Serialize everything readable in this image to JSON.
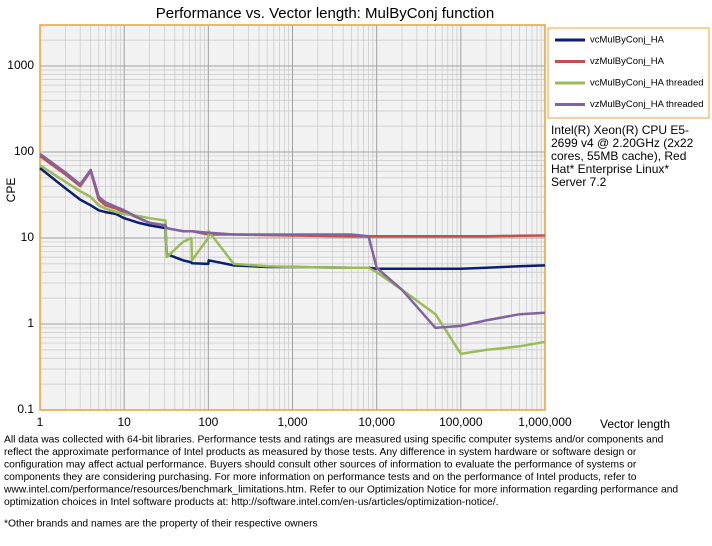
{
  "chart_data": {
    "type": "line",
    "title": "Performance vs. Vector length: MulByConj function",
    "x_label": "Vector length",
    "y_label": "CPE",
    "x": [
      1,
      2,
      3,
      4,
      5,
      6,
      8,
      10,
      15,
      20,
      31,
      32,
      50,
      63,
      64,
      100,
      101,
      200,
      500,
      1000,
      5000,
      8000,
      10000,
      20000,
      50000,
      100000,
      200000,
      500000,
      1000000
    ],
    "series": [
      {
        "name": "vcMulByConj_HA",
        "color": "#0b1f6e",
        "values": [
          65,
          38,
          28,
          24,
          21,
          20,
          19,
          17,
          15,
          14,
          13,
          6.5,
          5.5,
          5.2,
          5.1,
          5,
          5.5,
          4.8,
          4.6,
          4.6,
          4.5,
          4.5,
          4.4,
          4.4,
          4.4,
          4.4,
          4.5,
          4.7,
          4.8
        ]
      },
      {
        "name": "vzMulByConj_HA",
        "color": "#c0504d",
        "values": [
          90,
          55,
          40,
          60,
          28,
          24,
          22,
          20,
          17,
          15,
          14,
          13,
          12,
          12,
          12,
          11,
          11,
          11,
          10.8,
          10.7,
          10.5,
          10.5,
          10.5,
          10.5,
          10.5,
          10.5,
          10.5,
          10.6,
          10.7
        ]
      },
      {
        "name": "vcMulByConj_HA threaded",
        "color": "#9bbb59",
        "values": [
          70,
          45,
          35,
          30,
          24,
          22,
          20,
          19,
          18,
          17,
          16,
          6,
          9,
          10,
          5.5,
          10,
          12,
          5,
          4.7,
          4.6,
          4.5,
          4.5,
          4,
          2.5,
          1.3,
          0.45,
          0.5,
          0.55,
          0.62
        ]
      },
      {
        "name": "vzMulByConj_HA threaded",
        "color": "#8064a2",
        "values": [
          95,
          58,
          42,
          62,
          30,
          26,
          23,
          21,
          17,
          15,
          14,
          13,
          12,
          12,
          12,
          11.5,
          11.5,
          11,
          11,
          11,
          11,
          10.5,
          4.5,
          2.5,
          0.9,
          0.95,
          1.1,
          1.3,
          1.35
        ]
      }
    ],
    "xlim": [
      1,
      1000000
    ],
    "ylim": [
      0.1,
      3000
    ],
    "xticks": [
      1,
      10,
      100,
      {
        "value": 1000,
        "label": "1,000"
      },
      {
        "value": 10000,
        "label": "10,000"
      },
      {
        "value": 100000,
        "label": "100,000"
      },
      {
        "value": 1000000,
        "label": "1,000,000"
      }
    ],
    "yticks": [
      0.1,
      1,
      10,
      100,
      1000
    ],
    "x_log": true,
    "y_log": true,
    "grid": true,
    "minor_grid": true,
    "legend": "right",
    "annotation": [
      "Intel(R) Xeon(R) CPU E5-",
      "2699 v4 @ 2.20GHz (2x22",
      "cores, 55MB cache), Red",
      "Hat* Enterprise Linux*",
      "Server 7.2"
    ]
  },
  "footer": {
    "disclaimer": [
      "All data was collected with 64-bit libraries. Performance tests and ratings are measured using specific computer systems and/or components and",
      "reflect the approximate performance of Intel products as measured by those tests.  Any difference in system hardware or software design or",
      "configuration may affect actual performance. Buyers should consult other sources of information to evaluate  the performance of systems or",
      "components they are considering purchasing. For more information on performance tests and on the performance of Intel products, refer to",
      "www.intel.com/performance/resources/benchmark_limitations.htm.  Refer to our Optimization  Notice for more information regarding performance and",
      "optimization  choices in Intel software products at: http://software.intel.com/en-us/articles/optimization-notice/."
    ],
    "trademark": "*Other brands and names are the property of their respective owners"
  }
}
